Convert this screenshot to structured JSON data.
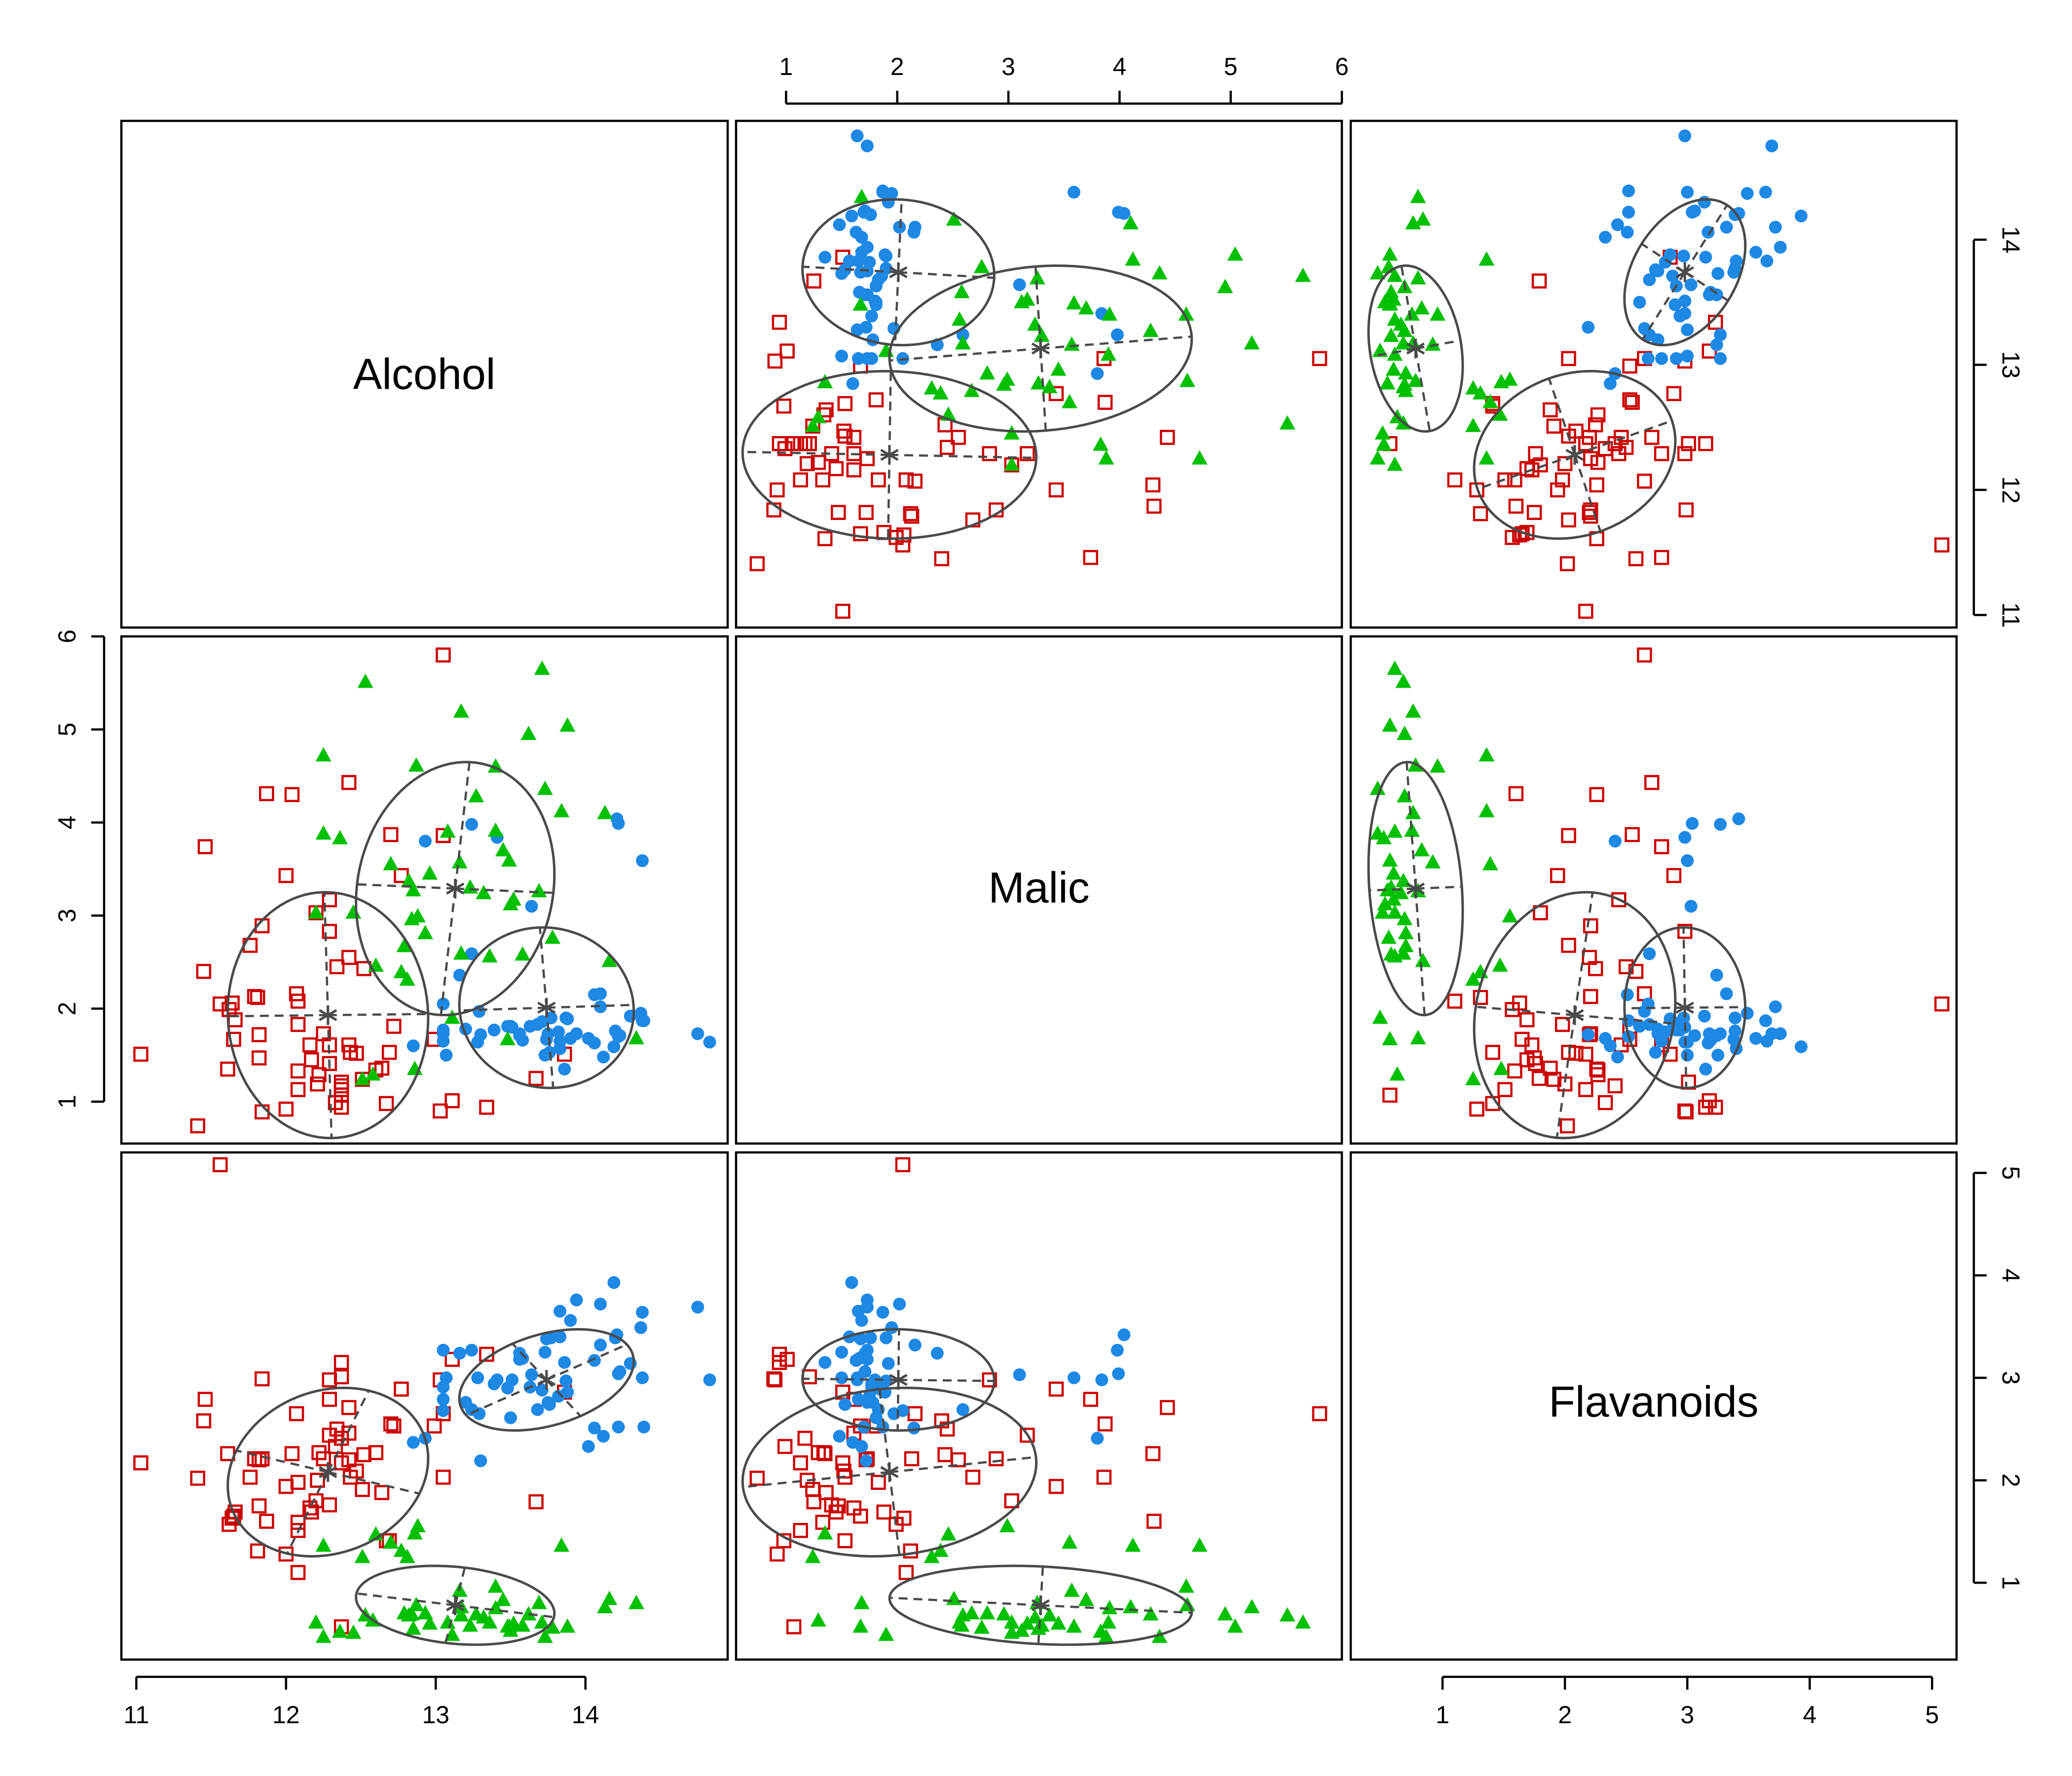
{
  "chart_data": {
    "type": "scatter",
    "variables": [
      "Alcohol",
      "Malic",
      "Flavanoids"
    ],
    "axes": {
      "Alcohol": {
        "range": [
          10.9,
          14.95
        ],
        "ticks": [
          "11",
          "12",
          "13",
          "14"
        ]
      },
      "Malic": {
        "range": [
          0.55,
          6.0
        ],
        "ticks": [
          "1",
          "2",
          "3",
          "4",
          "5",
          "6"
        ]
      },
      "Flavanoids": {
        "range": [
          0.25,
          5.2
        ],
        "ticks": [
          "1",
          "2",
          "3",
          "4",
          "5"
        ]
      }
    },
    "axis_placement": {
      "top": [
        {
          "col": 1,
          "var": "Malic"
        }
      ],
      "right": [
        {
          "row": 0,
          "var": "Alcohol"
        },
        {
          "row": 2,
          "var": "Flavanoids"
        }
      ],
      "left": [
        {
          "row": 1,
          "var": "Malic"
        }
      ],
      "bottom": [
        {
          "col": 0,
          "var": "Alcohol"
        },
        {
          "col": 2,
          "var": "Flavanoids"
        }
      ]
    },
    "groups": [
      {
        "color": "#cc0000",
        "marker": "open-square",
        "centroid": {
          "Alcohol": 12.28,
          "Malic": 1.93,
          "Flavanoids": 2.08
        },
        "points": [
          [
            11.41,
            0.74,
            2.02
          ],
          [
            11.03,
            1.51,
            2.17
          ],
          [
            11.46,
            3.74,
            2.79
          ],
          [
            11.56,
            2.05,
            5.08
          ],
          [
            11.45,
            2.4,
            2.58
          ],
          [
            11.61,
            1.35,
            2.26
          ],
          [
            11.62,
            1.99,
            1.57
          ],
          [
            11.64,
            2.06,
            1.63
          ],
          [
            11.65,
            1.67,
            1.65
          ],
          [
            11.66,
            1.88,
            1.69
          ],
          [
            11.76,
            2.68,
            2.03
          ],
          [
            11.79,
            2.13,
            2.21
          ],
          [
            11.81,
            2.12,
            1.31
          ],
          [
            11.82,
            1.47,
            1.75
          ],
          [
            11.82,
            1.72,
            2.2
          ],
          [
            11.84,
            0.89,
            2.99
          ],
          [
            11.84,
            2.89,
            2.21
          ],
          [
            11.87,
            4.31,
            1.6
          ],
          [
            12.0,
            0.92,
            1.28
          ],
          [
            12.0,
            3.43,
            1.94
          ],
          [
            12.04,
            4.3,
            2.26
          ],
          [
            12.07,
            2.16,
            2.65
          ],
          [
            12.08,
            1.13,
            1.51
          ],
          [
            12.08,
            1.33,
            1.59
          ],
          [
            12.08,
            1.83,
            1.98
          ],
          [
            12.08,
            2.08,
            1.1
          ],
          [
            12.16,
            1.61,
            1.73
          ],
          [
            12.17,
            1.45,
            1.69
          ],
          [
            12.2,
            3.03,
            1.8
          ],
          [
            12.21,
            1.19,
            2.0
          ],
          [
            12.22,
            1.29,
            2.27
          ],
          [
            12.25,
            1.73,
            2.21
          ],
          [
            12.29,
            1.61,
            2.79
          ],
          [
            12.29,
            1.41,
            1.76
          ],
          [
            12.29,
            2.83,
            2.98
          ],
          [
            12.29,
            3.17,
            2.44
          ],
          [
            12.33,
            0.99,
            2.33
          ],
          [
            12.34,
            2.45,
            2.5
          ],
          [
            12.37,
            0.94,
            3.15
          ],
          [
            12.37,
            1.07,
            0.57
          ],
          [
            12.37,
            1.13,
            2.17
          ],
          [
            12.37,
            1.17,
            2.41
          ],
          [
            12.37,
            1.21,
            3.01
          ],
          [
            12.42,
            1.61,
            2.46
          ],
          [
            12.42,
            2.55,
            2.2
          ],
          [
            12.42,
            4.43,
            2.71
          ],
          [
            12.43,
            1.53,
            2.03
          ],
          [
            12.47,
            1.52,
            2.09
          ],
          [
            12.51,
            1.24,
            1.91
          ],
          [
            12.52,
            2.43,
            2.25
          ],
          [
            12.6,
            1.34,
            2.27
          ],
          [
            12.64,
            1.36,
            1.88
          ],
          [
            12.67,
            0.98,
            1.41
          ],
          [
            12.69,
            1.53,
            1.41
          ],
          [
            12.7,
            3.87,
            2.55
          ],
          [
            12.72,
            1.81,
            2.53
          ],
          [
            12.77,
            3.43,
            2.89
          ],
          [
            12.99,
            1.67,
            2.53
          ],
          [
            13.03,
            0.9,
            2.98
          ],
          [
            13.05,
            3.86,
            2.03
          ],
          [
            13.05,
            5.8,
            2.65
          ],
          [
            13.11,
            1.01,
            3.18
          ],
          [
            13.34,
            0.94,
            3.23
          ],
          [
            13.67,
            1.25,
            1.79
          ],
          [
            13.86,
            1.51,
            2.86
          ]
        ]
      },
      {
        "color": "#1e88e5",
        "marker": "filled-circle",
        "centroid": {
          "Alcohol": 13.74,
          "Malic": 2.01,
          "Flavanoids": 2.98
        },
        "points": [
          [
            14.23,
            1.71,
            3.06
          ],
          [
            13.2,
            1.78,
            2.76
          ],
          [
            13.16,
            2.36,
            3.24
          ],
          [
            14.37,
            1.95,
            3.49
          ],
          [
            13.24,
            2.59,
            2.69
          ],
          [
            14.2,
            1.76,
            3.39
          ],
          [
            14.39,
            1.87,
            2.52
          ],
          [
            14.06,
            2.15,
            2.51
          ],
          [
            14.83,
            1.64,
            2.98
          ],
          [
            13.86,
            1.35,
            3.15
          ],
          [
            14.1,
            2.16,
            3.32
          ],
          [
            14.12,
            1.48,
            2.43
          ],
          [
            13.75,
            1.73,
            2.76
          ],
          [
            14.75,
            1.73,
            3.69
          ],
          [
            14.38,
            1.87,
            3.64
          ],
          [
            13.63,
            1.81,
            2.91
          ],
          [
            14.3,
            1.92,
            3.14
          ],
          [
            13.83,
            1.57,
            3.4
          ],
          [
            14.19,
            1.59,
            3.93
          ],
          [
            13.64,
            3.1,
            3.03
          ],
          [
            14.06,
            1.63,
            3.17
          ],
          [
            12.93,
            3.8,
            2.41
          ],
          [
            13.71,
            1.86,
            2.88
          ],
          [
            12.85,
            1.6,
            2.37
          ],
          [
            13.5,
            1.81,
            2.61
          ],
          [
            13.05,
            2.05,
            2.68
          ],
          [
            13.39,
            1.77,
            2.94
          ],
          [
            13.3,
            1.72,
            2.19
          ],
          [
            13.87,
            1.9,
            2.97
          ],
          [
            14.02,
            1.68,
            2.33
          ],
          [
            13.73,
            1.5,
            3.25
          ],
          [
            13.58,
            1.66,
            3.19
          ],
          [
            13.68,
            1.83,
            2.69
          ],
          [
            13.76,
            1.53,
            2.74
          ],
          [
            13.51,
            1.8,
            2.98
          ],
          [
            13.48,
            1.81,
            2.9
          ],
          [
            13.28,
            1.64,
            3.0
          ],
          [
            13.05,
            1.65,
            2.79
          ],
          [
            13.07,
            1.5,
            3.0
          ],
          [
            14.22,
            3.99,
            3.04
          ],
          [
            13.56,
            1.71,
            3.24
          ],
          [
            13.41,
            3.84,
            2.98
          ],
          [
            13.88,
            1.89,
            2.86
          ],
          [
            13.24,
            3.98,
            3.27
          ],
          [
            13.05,
            1.77,
            2.91
          ],
          [
            14.21,
            4.04,
            3.42
          ],
          [
            14.38,
            3.59,
            3.0
          ],
          [
            13.9,
            1.68,
            3.56
          ],
          [
            14.1,
            2.02,
            3.72
          ],
          [
            13.94,
            1.73,
            3.76
          ],
          [
            13.05,
            1.73,
            3.27
          ],
          [
            13.83,
            1.65,
            3.65
          ],
          [
            13.82,
            1.75,
            2.82
          ],
          [
            13.77,
            1.9,
            3.39
          ],
          [
            13.74,
            1.67,
            3.38
          ],
          [
            13.56,
            1.73,
            3.18
          ],
          [
            14.22,
            1.7,
            2.52
          ],
          [
            13.29,
            1.97,
            2.65
          ]
        ]
      },
      {
        "color": "#00c000",
        "marker": "filled-triangle",
        "centroid": {
          "Alcohol": 13.13,
          "Malic": 3.29,
          "Flavanoids": 0.78
        },
        "points": [
          [
            12.86,
            1.35,
            1.48
          ],
          [
            12.88,
            2.99,
            1.55
          ],
          [
            12.81,
            2.31,
            1.25
          ],
          [
            12.7,
            3.55,
            1.39
          ],
          [
            12.51,
            1.24,
            1.25
          ],
          [
            12.6,
            2.46,
            1.47
          ],
          [
            12.25,
            4.72,
            1.36
          ],
          [
            12.53,
            5.51,
            0.68
          ],
          [
            13.49,
            3.59,
            0.57
          ],
          [
            12.84,
            2.96,
            0.69
          ],
          [
            12.93,
            2.81,
            0.7
          ],
          [
            13.36,
            2.56,
            0.61
          ],
          [
            13.52,
            3.17,
            0.6
          ],
          [
            13.62,
            4.95,
            0.69
          ],
          [
            12.25,
            3.88,
            0.47
          ],
          [
            13.16,
            3.57,
            0.92
          ],
          [
            13.88,
            5.04,
            0.57
          ],
          [
            12.87,
            4.61,
            0.78
          ],
          [
            13.32,
            3.24,
            0.66
          ],
          [
            13.08,
            3.9,
            0.61
          ],
          [
            13.5,
            3.12,
            0.53
          ],
          [
            12.79,
            2.67,
            0.7
          ],
          [
            13.11,
            1.9,
            0.49
          ],
          [
            13.23,
            3.3,
            0.58
          ],
          [
            12.58,
            1.29,
            0.63
          ],
          [
            13.17,
            5.19,
            0.76
          ],
          [
            13.84,
            4.12,
            1.36
          ],
          [
            12.45,
            3.03,
            0.51
          ],
          [
            14.34,
            1.68,
            0.8
          ],
          [
            13.48,
            1.67,
            0.57
          ],
          [
            12.36,
            3.83,
            0.52
          ],
          [
            13.69,
            3.26,
            0.8
          ],
          [
            12.85,
            3.27,
            0.55
          ],
          [
            12.96,
            3.45,
            0.6
          ],
          [
            13.78,
            2.76,
            0.56
          ],
          [
            13.73,
            4.36,
            0.47
          ],
          [
            13.45,
            3.7,
            0.83
          ],
          [
            12.82,
            3.37,
            0.68
          ],
          [
            13.58,
            2.58,
            0.58
          ],
          [
            13.4,
            4.6,
            0.96
          ],
          [
            12.2,
            3.03,
            0.61
          ],
          [
            12.77,
            2.39,
            1.31
          ],
          [
            14.16,
            2.51,
            0.84
          ],
          [
            13.71,
            5.65,
            0.61
          ],
          [
            13.4,
            3.91,
            0.75
          ],
          [
            13.27,
            4.28,
            0.69
          ],
          [
            13.17,
            2.59,
            0.68
          ],
          [
            14.13,
            4.1,
            0.76
          ]
        ]
      }
    ]
  },
  "labels": {
    "diag": [
      "Alcohol",
      "Malic",
      "Flavanoids"
    ]
  },
  "colors": {
    "group1": "#cc0000",
    "group2": "#1e88e5",
    "group3": "#00c000",
    "ellipse": "#4a4a4a"
  }
}
